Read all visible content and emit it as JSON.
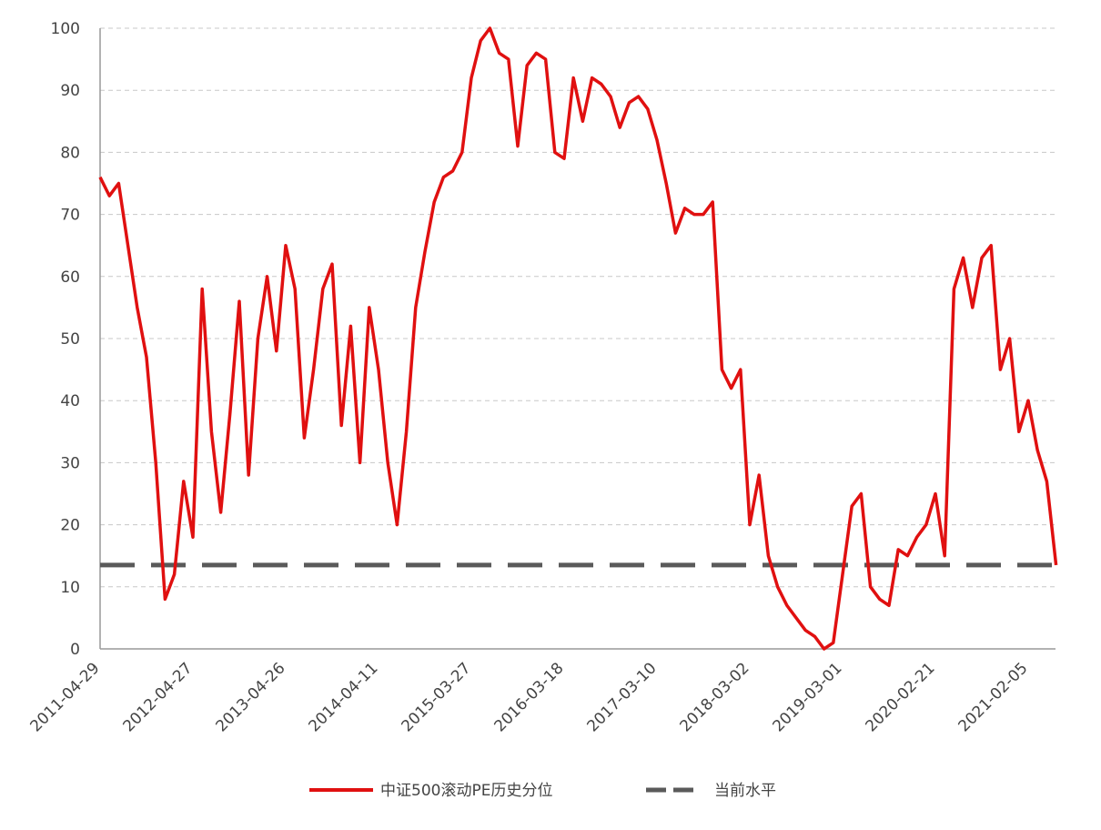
{
  "chart_data": {
    "type": "line",
    "categories": [
      "2011-04-29",
      null,
      null,
      null,
      null,
      null,
      null,
      null,
      null,
      null,
      "2012-04-27",
      null,
      null,
      null,
      null,
      null,
      null,
      null,
      null,
      null,
      "2013-04-26",
      null,
      null,
      null,
      null,
      null,
      null,
      null,
      null,
      null,
      "2014-04-11",
      null,
      null,
      null,
      null,
      null,
      null,
      null,
      null,
      null,
      "2015-03-27",
      null,
      null,
      null,
      null,
      null,
      null,
      null,
      null,
      null,
      "2016-03-18",
      null,
      null,
      null,
      null,
      null,
      null,
      null,
      null,
      null,
      "2017-03-10",
      null,
      null,
      null,
      null,
      null,
      null,
      null,
      null,
      null,
      "2018-03-02",
      null,
      null,
      null,
      null,
      null,
      null,
      null,
      null,
      null,
      "2019-03-01",
      null,
      null,
      null,
      null,
      null,
      null,
      null,
      null,
      null,
      "2020-02-21",
      null,
      null,
      null,
      null,
      null,
      null,
      null,
      null,
      null,
      "2021-02-05",
      null,
      null,
      null
    ],
    "series": [
      {
        "name": "中证500滚动PE历史分位",
        "color": "#e01010",
        "values": [
          76,
          73,
          75,
          65,
          55,
          47,
          30,
          8,
          12,
          27,
          18,
          58,
          35,
          22,
          38,
          56,
          28,
          50,
          60,
          48,
          65,
          58,
          34,
          45,
          58,
          62,
          36,
          52,
          30,
          55,
          45,
          30,
          20,
          35,
          55,
          64,
          72,
          76,
          77,
          80,
          92,
          98,
          100,
          96,
          95,
          81,
          94,
          96,
          95,
          80,
          79,
          92,
          85,
          92,
          91,
          89,
          84,
          88,
          89,
          87,
          82,
          75,
          67,
          71,
          70,
          70,
          72,
          45,
          42,
          45,
          20,
          28,
          15,
          10,
          7,
          5,
          3,
          2,
          0,
          1,
          12,
          23,
          25,
          10,
          8,
          7,
          16,
          15,
          18,
          20,
          25,
          15,
          58,
          63,
          55,
          63,
          65,
          45,
          50,
          35,
          40,
          32,
          27,
          13.5
        ]
      }
    ],
    "reference_line": {
      "name": "当前水平",
      "value": 13.5,
      "color": "#5a5a5a"
    },
    "ylim": [
      0,
      100
    ],
    "yticks": [
      0,
      10,
      20,
      30,
      40,
      50,
      60,
      70,
      80,
      90,
      100
    ],
    "grid": true,
    "legend": "bottom"
  }
}
